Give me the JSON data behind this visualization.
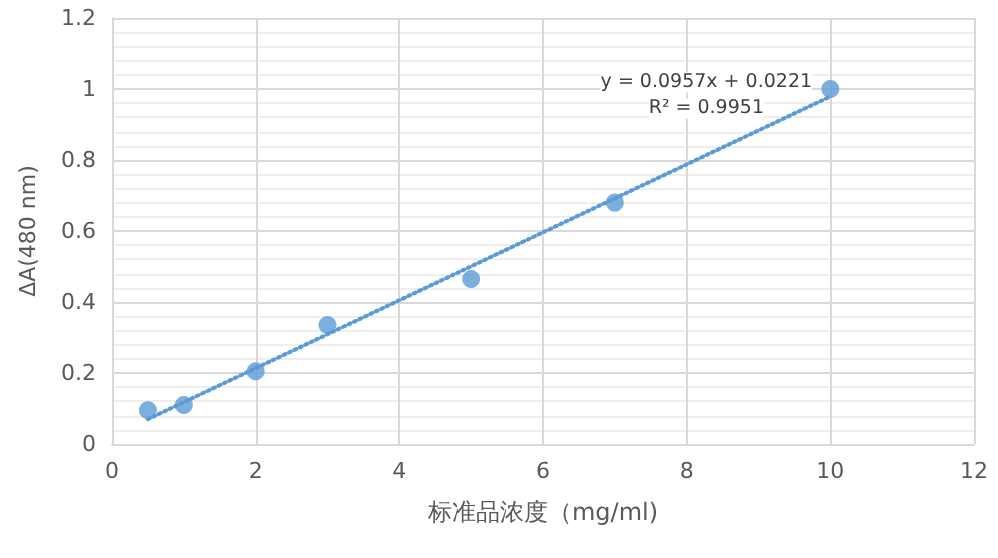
{
  "chart_data": {
    "type": "scatter",
    "xlabel": "标准品浓度（mg/ml)",
    "ylabel": "ΔA(480 nm)",
    "x": [
      0.5,
      1,
      2,
      3,
      5,
      7,
      10
    ],
    "series": [
      {
        "color": "#5b9bd5",
        "values": [
          0.095,
          0.11,
          0.205,
          0.335,
          0.465,
          0.68,
          1.0
        ],
        "marker": "circle"
      },
      {
        "type": "line",
        "color": "#5b9bd5",
        "x": [
          0.5,
          10
        ],
        "values": [
          0.07,
          0.979
        ],
        "line_style": "dotted",
        "marker": "none"
      }
    ],
    "annotations": [
      "y = 0.0957x + 0.0221",
      "R² = 0.9951"
    ],
    "xlim": [
      0,
      12
    ],
    "xticks": [
      0,
      2,
      4,
      6,
      8,
      10,
      12
    ],
    "ylim": [
      0,
      1.2
    ],
    "yticks": [
      0,
      0.2,
      0.4,
      0.6,
      0.8,
      1,
      1.2
    ],
    "grid": true
  }
}
